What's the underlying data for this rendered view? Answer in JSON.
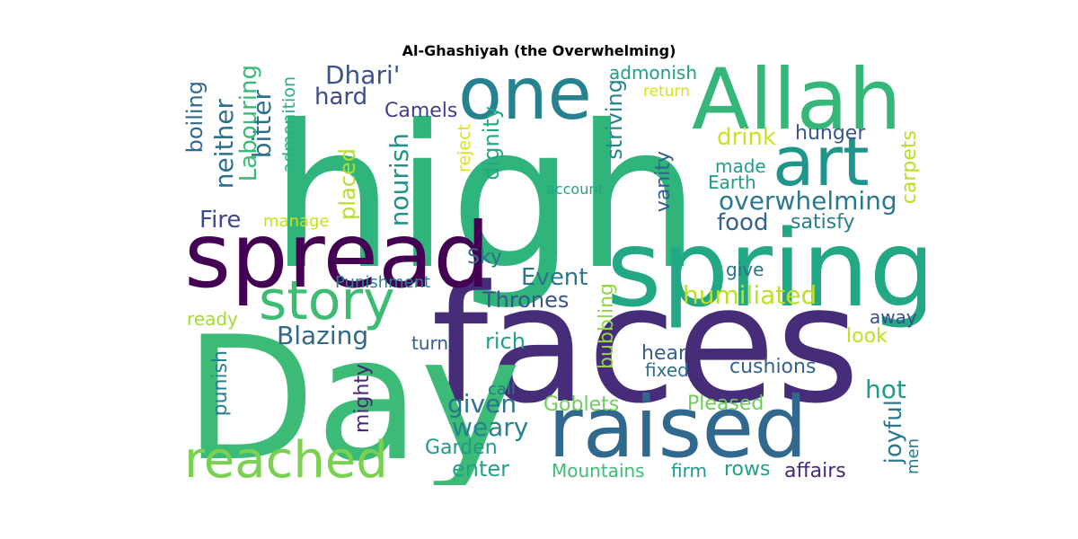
{
  "title": "Al-Ghashiyah (the Overwhelming)",
  "words": [
    {
      "text": "high",
      "color": "#2fb47c"
    },
    {
      "text": "faces",
      "color": "#472c7a"
    },
    {
      "text": "Day",
      "color": "#3bbb75"
    },
    {
      "text": "spring",
      "color": "#22a884"
    },
    {
      "text": "raised",
      "color": "#31688e"
    },
    {
      "text": "Allah",
      "color": "#35b779"
    },
    {
      "text": "spread",
      "color": "#440154"
    },
    {
      "text": "one",
      "color": "#26828e"
    },
    {
      "text": "art",
      "color": "#1f968b"
    },
    {
      "text": "story",
      "color": "#3dbc74"
    },
    {
      "text": "reached",
      "color": "#7ad151"
    },
    {
      "text": "humiliated",
      "color": "#bddf26"
    },
    {
      "text": "overwhelming",
      "color": "#2a788e"
    },
    {
      "text": "Dhari'",
      "color": "#3b528b"
    },
    {
      "text": "hard",
      "color": "#3e4a89"
    },
    {
      "text": "Camels",
      "color": "#423f85"
    },
    {
      "text": "drink",
      "color": "#cae11f"
    },
    {
      "text": "hunger",
      "color": "#39568c"
    },
    {
      "text": "made",
      "color": "#1fa088"
    },
    {
      "text": "Earth",
      "color": "#1f9e89"
    },
    {
      "text": "food",
      "color": "#33638d"
    },
    {
      "text": "satisfy",
      "color": "#287d8e"
    },
    {
      "text": "Fire",
      "color": "#3e4989"
    },
    {
      "text": "manage",
      "color": "#c8e020"
    },
    {
      "text": "give",
      "color": "#2c718e"
    },
    {
      "text": "Event",
      "color": "#2c738e"
    },
    {
      "text": "Sky",
      "color": "#2d708e"
    },
    {
      "text": "Thrones",
      "color": "#3a548c"
    },
    {
      "text": "Punishment",
      "color": "#25858e"
    },
    {
      "text": "Blazing",
      "color": "#31668e"
    },
    {
      "text": "ready",
      "color": "#a5db36"
    },
    {
      "text": "turn",
      "color": "#34608d"
    },
    {
      "text": "rich",
      "color": "#1fa187"
    },
    {
      "text": "hear",
      "color": "#365d8d"
    },
    {
      "text": "fixed",
      "color": "#2e6f8e"
    },
    {
      "text": "cushions",
      "color": "#33638d"
    },
    {
      "text": "look",
      "color": "#c0df25"
    },
    {
      "text": "away",
      "color": "#3d4d8a"
    },
    {
      "text": "hot",
      "color": "#1e9c89"
    },
    {
      "text": "call",
      "color": "#2b758e"
    },
    {
      "text": "given",
      "color": "#2d718e"
    },
    {
      "text": "Goblets",
      "color": "#6ccd5a"
    },
    {
      "text": "Pleased",
      "color": "#6ccd5a"
    },
    {
      "text": "weary",
      "color": "#26828e"
    },
    {
      "text": "Garden",
      "color": "#1f9a8a"
    },
    {
      "text": "enter",
      "color": "#20a386"
    },
    {
      "text": "Mountains",
      "color": "#3dbc74"
    },
    {
      "text": "firm",
      "color": "#1f998a"
    },
    {
      "text": "rows",
      "color": "#1fa088"
    },
    {
      "text": "affairs",
      "color": "#482878"
    },
    {
      "text": "admonish",
      "color": "#1fa088"
    },
    {
      "text": "return",
      "color": "#d8e219"
    },
    {
      "text": "account",
      "color": "#20a486"
    },
    {
      "text": "boiling",
      "color": "#306a8e"
    },
    {
      "text": "neither",
      "color": "#2d708e"
    },
    {
      "text": "bitter",
      "color": "#2d708e"
    },
    {
      "text": "Labouring",
      "color": "#3aba76"
    },
    {
      "text": "admonition",
      "color": "#29af7f"
    },
    {
      "text": "nourish",
      "color": "#21918c"
    },
    {
      "text": "placed",
      "color": "#b5de2b"
    },
    {
      "text": "reject",
      "color": "#dde318"
    },
    {
      "text": "dignity",
      "color": "#22a785"
    },
    {
      "text": "striving",
      "color": "#25848e"
    },
    {
      "text": "vanity",
      "color": "#355e8d"
    },
    {
      "text": "carpets",
      "color": "#b8de29"
    },
    {
      "text": "bubbling",
      "color": "#90d743"
    },
    {
      "text": "punish",
      "color": "#26818e"
    },
    {
      "text": "mighty",
      "color": "#482475"
    },
    {
      "text": "joyful",
      "color": "#2a788e"
    },
    {
      "text": "men",
      "color": "#2a788e"
    }
  ]
}
